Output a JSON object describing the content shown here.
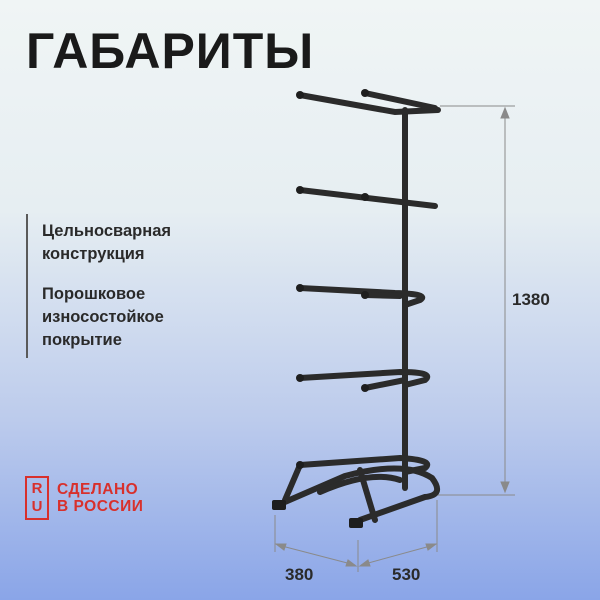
{
  "title": "ГАБАРИТЫ",
  "features": [
    "Цельносварная\nконструкция",
    "Порошковое\nизносостойкое\nпокрытие"
  ],
  "badge": {
    "logo_letters": [
      "R",
      "U"
    ],
    "line1": "СДЕЛАНО",
    "line2": "В РОССИИ",
    "color": "#d8302c"
  },
  "dimensions": {
    "height": "1380",
    "depth": "380",
    "width": "530"
  },
  "colors": {
    "frame": "#2b2b2b",
    "dimension_lines": "#8a8a8a"
  }
}
